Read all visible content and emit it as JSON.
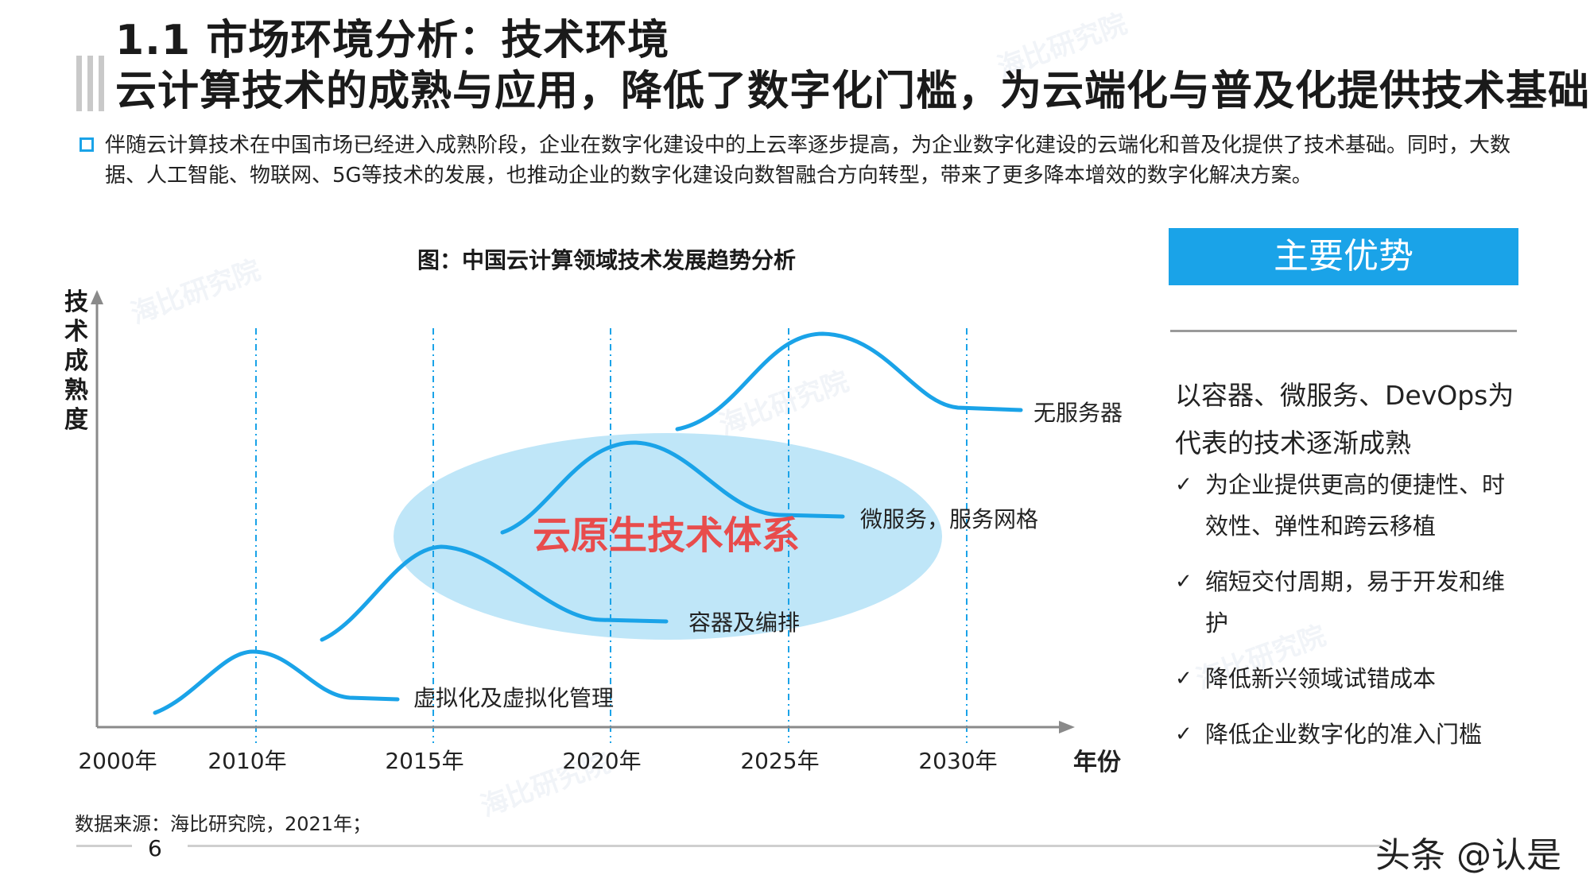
{
  "header": {
    "title_line1": "1.1 市场环境分析：技术环境",
    "title_line2": "云计算技术的成熟与应用，降低了数字化门槛，为云端化与普及化提供技术基础"
  },
  "intro": "伴随云计算技术在中国市场已经进入成熟阶段，企业在数字化建设中的上云率逐步提高，为企业数字化建设的云端化和普及化提供了技术基础。同时，大数据、人工智能、物联网、5G等技术的发展，也推动企业的数字化建设向数智融合方向转型，带来了更多降本增效的数字化解决方案。",
  "colors": {
    "accent": "#1aa3e8",
    "ellipse": "#bfe6f8",
    "highlight_text": "#e84c4c"
  },
  "chart_data": {
    "type": "line",
    "title": "图：中国云计算领域技术发展趋势分析",
    "ylabel": "技术成熟度",
    "xlabel": "年份",
    "x_ticks": [
      "2000年",
      "2010年",
      "2015年",
      "2020年",
      "2025年",
      "2030年"
    ],
    "center_label": "云原生技术体系",
    "series": [
      {
        "name": "虚拟化及虚拟化管理",
        "peak_year": 2010
      },
      {
        "name": "容器及编排",
        "peak_year": 2015
      },
      {
        "name": "微服务，服务网格",
        "peak_year": 2021
      },
      {
        "name": "无服务器",
        "peak_year": 2026
      }
    ]
  },
  "advantages": {
    "button": "主要优势",
    "heading": "以容器、微服务、DevOps为代表的技术逐渐成熟",
    "check_glyph": "✓",
    "items": [
      "为企业提供更高的便捷性、时效性、弹性和跨云移植",
      "缩短交付周期，易于开发和维护",
      "降低新兴领域试错成本",
      "降低企业数字化的准入门槛"
    ]
  },
  "footer": {
    "source": "数据来源：海比研究院，2021年；",
    "page": "6",
    "brand": "头条 @认是"
  },
  "watermark": "海比研究院"
}
